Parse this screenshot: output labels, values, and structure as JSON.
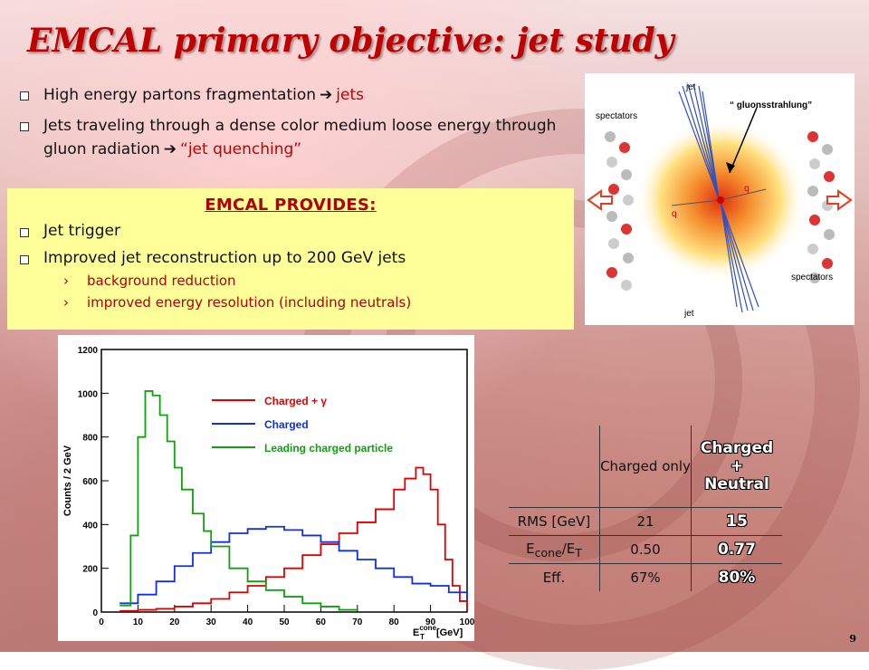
{
  "slide": {
    "title": "EMCAL primary objective: jet study",
    "page_number": "9"
  },
  "bullets": [
    {
      "text": "High energy partons fragmentation",
      "highlight": "jets"
    },
    {
      "text": "Jets traveling through a dense color medium loose energy through gluon radiation",
      "highlight": "“jet quenching”"
    }
  ],
  "provides": {
    "title": "EMCAL PROVIDES:",
    "items": [
      "Jet trigger",
      "Improved jet reconstruction up to 200 GeV jets"
    ],
    "subitems": [
      "background reduction",
      "improved energy resolution (including neutrals)"
    ]
  },
  "diagram": {
    "labels": {
      "jet_top": "jet",
      "jet_bottom": "jet",
      "gluon": "“ gluonsstrahlung”",
      "spectators_top": "spectators",
      "spectators_bottom": "spectators",
      "q1": "q",
      "q2": "q"
    }
  },
  "table": {
    "headers": [
      "",
      "Charged only",
      "Charged\n+\nNeutral"
    ],
    "rows": [
      {
        "label": "RMS [GeV]",
        "charged": "21",
        "neutral": "15"
      },
      {
        "label": "E_cone/E_T",
        "charged": "0.50",
        "neutral": "0.77"
      },
      {
        "label": "Eff.",
        "charged": "67%",
        "neutral": "80%"
      }
    ],
    "header_line1": "Charged",
    "header_line2": "+",
    "header_line3": "Neutral",
    "charged_only": "Charged only",
    "econe_e": "E",
    "econe_sub": "cone",
    "econe_mid": "/E",
    "econe_sub2": "T"
  },
  "colors": {
    "title_red": "#c00000",
    "box_yellow": "#ffff99",
    "charged_gamma": "#e00000",
    "charged": "#1030e0",
    "leading": "#10a010"
  },
  "chart_data": {
    "type": "line",
    "ylabel": "Counts / 2 GeV",
    "xlabel": "E_T^cone [GeV]",
    "xlabel_parts": {
      "e": "E",
      "sub": "T",
      "sup": "cone",
      "unit": "[GeV]"
    },
    "xlim": [
      0,
      100
    ],
    "ylim": [
      0,
      1200
    ],
    "xticks": [
      0,
      10,
      20,
      30,
      40,
      50,
      60,
      70,
      80,
      90,
      100
    ],
    "yticks": [
      0,
      200,
      400,
      600,
      800,
      1000,
      1200
    ],
    "legend": [
      "Charged + γ",
      "Charged",
      "Leading charged particle"
    ],
    "series": [
      {
        "name": "Charged + γ",
        "color": "#e00000",
        "x": [
          5,
          10,
          15,
          20,
          25,
          30,
          35,
          40,
          45,
          50,
          55,
          60,
          65,
          70,
          75,
          80,
          83,
          86,
          88,
          90,
          92,
          94,
          96,
          98,
          100
        ],
        "y": [
          5,
          10,
          15,
          25,
          40,
          60,
          90,
          120,
          160,
          200,
          260,
          310,
          360,
          410,
          470,
          560,
          610,
          660,
          630,
          560,
          400,
          240,
          120,
          50,
          10
        ]
      },
      {
        "name": "Charged",
        "color": "#1030e0",
        "x": [
          5,
          10,
          15,
          20,
          25,
          30,
          35,
          40,
          45,
          50,
          55,
          60,
          65,
          70,
          75,
          80,
          85,
          90,
          95,
          100
        ],
        "y": [
          40,
          80,
          140,
          210,
          270,
          320,
          360,
          380,
          390,
          375,
          350,
          320,
          280,
          240,
          200,
          160,
          130,
          120,
          90,
          60
        ]
      },
      {
        "name": "Leading charged particle",
        "color": "#10a010",
        "x": [
          5,
          8,
          10,
          12,
          14,
          16,
          18,
          20,
          22,
          25,
          28,
          30,
          35,
          40,
          45,
          50,
          55,
          60,
          65,
          70
        ],
        "y": [
          30,
          350,
          800,
          1010,
          990,
          900,
          780,
          660,
          560,
          450,
          370,
          300,
          200,
          140,
          100,
          70,
          40,
          25,
          10,
          5
        ]
      }
    ]
  }
}
